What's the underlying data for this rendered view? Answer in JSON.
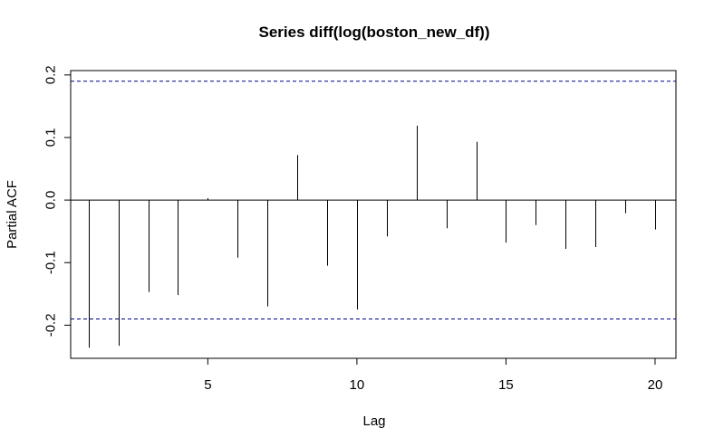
{
  "chart_data": {
    "type": "bar",
    "title": "Series  diff(log(boston_new_df))",
    "xlabel": "Lag",
    "ylabel": "Partial ACF",
    "xlim": [
      0.4,
      20.7
    ],
    "ylim": [
      -0.253,
      0.207
    ],
    "xticks": [
      5,
      10,
      15,
      20
    ],
    "yticks": [
      -0.2,
      -0.1,
      0.0,
      0.1,
      0.2
    ],
    "ytick_labels": [
      "-0.2",
      "-0.1",
      "0.0",
      "0.1",
      "0.2"
    ],
    "lags": [
      1,
      2,
      3,
      4,
      5,
      6,
      7,
      8,
      9,
      10,
      11,
      12,
      13,
      14,
      15,
      16,
      17,
      18,
      19,
      20
    ],
    "values": [
      -0.236,
      -0.233,
      -0.147,
      -0.152,
      0.003,
      -0.092,
      -0.17,
      0.072,
      -0.105,
      -0.175,
      -0.058,
      0.119,
      -0.045,
      0.093,
      -0.068,
      -0.04,
      -0.078,
      -0.075,
      -0.021,
      -0.047
    ],
    "confidence_limits": [
      0.19,
      -0.19
    ],
    "grid": false,
    "colors": {
      "bars": "#000000",
      "confidence": "#00008B",
      "zero": "#000000"
    }
  }
}
